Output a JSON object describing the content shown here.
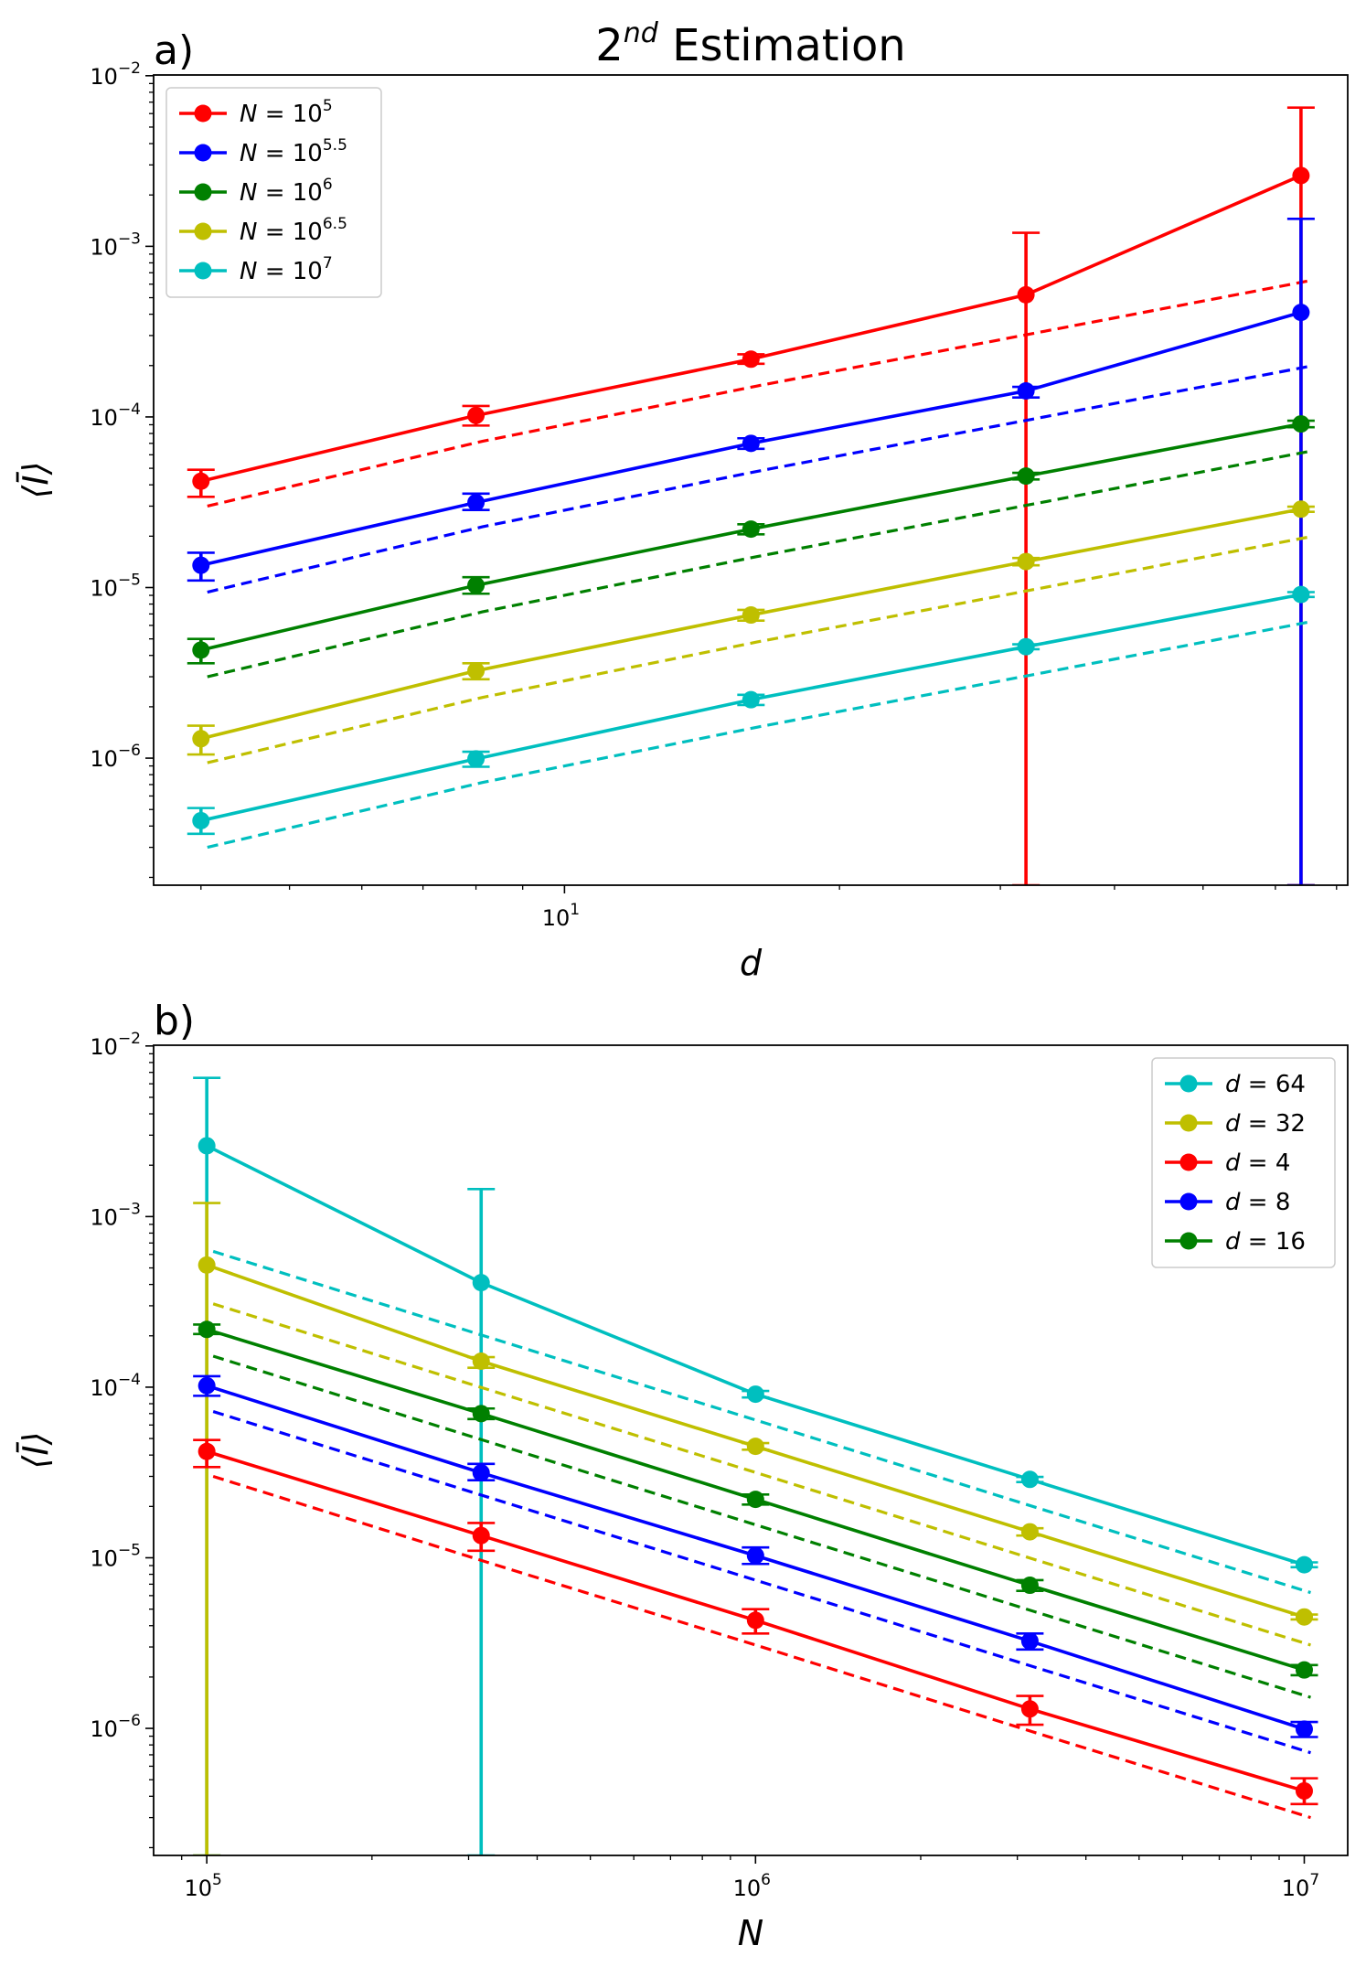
{
  "chart_data": [
    {
      "type": "line",
      "panel": "a)",
      "title": "2",
      "title_sup": "nd",
      "title_rest": " Estimation",
      "xlabel": "d",
      "ylabel": "⟨Ī⟩",
      "xscale": "log",
      "yscale": "log",
      "xlim": [
        3.55,
        72
      ],
      "ylim": [
        1.8e-07,
        0.0101
      ],
      "x_ticks": [
        {
          "value": 10,
          "base": "10",
          "exp": "1"
        }
      ],
      "y_ticks": [
        {
          "value": 1e-06,
          "base": "10",
          "exp": "−6"
        },
        {
          "value": 1e-05,
          "base": "10",
          "exp": "−5"
        },
        {
          "value": 0.0001,
          "base": "10",
          "exp": "−4"
        },
        {
          "value": 0.001,
          "base": "10",
          "exp": "−3"
        },
        {
          "value": 0.01,
          "base": "10",
          "exp": "−2"
        }
      ],
      "legend_position": "upper-left",
      "x": [
        4,
        8,
        16,
        32,
        64
      ],
      "series": [
        {
          "name": "N = 10",
          "name_sup": "5",
          "color": "#ff0000",
          "values": [
            4.2e-05,
            0.000102,
            0.000218,
            0.00052,
            0.0026
          ],
          "err_low": [
            3.4e-05,
            8.9e-05,
            0.000205,
            1.8e-07,
            1.8e-07
          ],
          "err_high": [
            4.9e-05,
            0.000116,
            0.000233,
            0.0012,
            0.0065
          ],
          "dashed": [
            3e-05,
            7.2e-05,
            0.000152,
            0.000308,
            0.000625
          ]
        },
        {
          "name": "N = 10",
          "name_sup": "5.5",
          "color": "#0000ff",
          "values": [
            1.35e-05,
            3.15e-05,
            7e-05,
            0.000142,
            0.00041
          ],
          "err_low": [
            1.1e-05,
            2.85e-05,
            6.5e-05,
            0.00013,
            1.8e-07
          ],
          "err_high": [
            1.6e-05,
            3.55e-05,
            7.5e-05,
            0.00015,
            0.00145
          ],
          "dashed": [
            9.4e-06,
            2.27e-05,
            4.8e-05,
            9.7e-05,
            0.000197
          ]
        },
        {
          "name": "N = 10",
          "name_sup": "6",
          "color": "#008000",
          "values": [
            4.3e-06,
            1.03e-05,
            2.2e-05,
            4.5e-05,
            9.1e-05
          ],
          "err_low": [
            3.6e-06,
            9.2e-06,
            2.05e-05,
            4.3e-05,
            8.7e-05
          ],
          "err_high": [
            5e-06,
            1.15e-05,
            2.35e-05,
            4.7e-05,
            9.5e-05
          ],
          "dashed": [
            3e-06,
            7.2e-06,
            1.52e-05,
            3.08e-05,
            6.25e-05
          ]
        },
        {
          "name": "N = 10",
          "name_sup": "6.5",
          "color": "#bfbf00",
          "values": [
            1.3e-06,
            3.25e-06,
            6.9e-06,
            1.42e-05,
            2.88e-05
          ],
          "err_low": [
            1.05e-06,
            2.9e-06,
            6.4e-06,
            1.35e-05,
            2.78e-05
          ],
          "err_high": [
            1.55e-06,
            3.6e-06,
            7.4e-06,
            1.49e-05,
            2.98e-05
          ],
          "dashed": [
            9.4e-07,
            2.27e-06,
            4.8e-06,
            9.7e-06,
            1.97e-05
          ]
        },
        {
          "name": "N = 10",
          "name_sup": "7",
          "color": "#00bfbf",
          "values": [
            4.3e-07,
            9.9e-07,
            2.2e-06,
            4.5e-06,
            9.1e-06
          ],
          "err_low": [
            3.6e-07,
            8.9e-07,
            2.05e-06,
            4.35e-06,
            8.8e-06
          ],
          "err_high": [
            5.1e-07,
            1.09e-06,
            2.35e-06,
            4.65e-06,
            9.4e-06
          ],
          "dashed": [
            3e-07,
            7.2e-07,
            1.52e-06,
            3.08e-06,
            6.25e-06
          ]
        }
      ]
    },
    {
      "type": "line",
      "panel": "b)",
      "xlabel": "N",
      "ylabel": "⟨Ī⟩",
      "xscale": "log",
      "yscale": "log",
      "xlim": [
        80000,
        12000000
      ],
      "ylim": [
        1.8e-07,
        0.0101
      ],
      "x_ticks": [
        {
          "value": 100000,
          "base": "10",
          "exp": "5"
        },
        {
          "value": 1000000,
          "base": "10",
          "exp": "6"
        },
        {
          "value": 10000000,
          "base": "10",
          "exp": "7"
        }
      ],
      "y_ticks": [
        {
          "value": 1e-06,
          "base": "10",
          "exp": "−6"
        },
        {
          "value": 1e-05,
          "base": "10",
          "exp": "−5"
        },
        {
          "value": 0.0001,
          "base": "10",
          "exp": "−4"
        },
        {
          "value": 0.001,
          "base": "10",
          "exp": "−3"
        },
        {
          "value": 0.01,
          "base": "10",
          "exp": "−2"
        }
      ],
      "legend_position": "upper-right",
      "x": [
        100000,
        316228,
        1000000,
        3162278,
        10000000
      ],
      "series": [
        {
          "name": "d = 64",
          "color": "#00bfbf",
          "values": [
            0.0026,
            0.00041,
            9.1e-05,
            2.88e-05,
            9.1e-06
          ],
          "err_low": [
            1.8e-07,
            1.8e-07,
            8.7e-05,
            2.78e-05,
            8.8e-06
          ],
          "err_high": [
            0.0065,
            0.00145,
            9.5e-05,
            2.98e-05,
            9.4e-06
          ],
          "dashed": [
            0.000625,
            0.000197,
            6.25e-05,
            1.97e-05,
            6.25e-06
          ]
        },
        {
          "name": "d = 32",
          "color": "#bfbf00",
          "values": [
            0.00052,
            0.000142,
            4.5e-05,
            1.42e-05,
            4.5e-06
          ],
          "err_low": [
            1.8e-07,
            0.00013,
            4.3e-05,
            1.35e-05,
            4.35e-06
          ],
          "err_high": [
            0.0012,
            0.00015,
            4.7e-05,
            1.49e-05,
            4.65e-06
          ],
          "dashed": [
            0.000308,
            9.7e-05,
            3.08e-05,
            9.7e-06,
            3.08e-06
          ]
        },
        {
          "name": "d = 4",
          "color": "#ff0000",
          "values": [
            4.2e-05,
            1.35e-05,
            4.3e-06,
            1.3e-06,
            4.3e-07
          ],
          "err_low": [
            3.4e-05,
            1.1e-05,
            3.6e-06,
            1.05e-06,
            3.6e-07
          ],
          "err_high": [
            4.9e-05,
            1.6e-05,
            5e-06,
            1.55e-06,
            5.1e-07
          ],
          "dashed": [
            3e-05,
            9.4e-06,
            3e-06,
            9.4e-07,
            3e-07
          ]
        },
        {
          "name": "d = 8",
          "color": "#0000ff",
          "values": [
            0.000102,
            3.15e-05,
            1.03e-05,
            3.25e-06,
            9.9e-07
          ],
          "err_low": [
            8.9e-05,
            2.85e-05,
            9.2e-06,
            2.9e-06,
            8.9e-07
          ],
          "err_high": [
            0.000116,
            3.55e-05,
            1.15e-05,
            3.6e-06,
            1.09e-06
          ],
          "dashed": [
            7.2e-05,
            2.27e-05,
            7.2e-06,
            2.27e-06,
            7.2e-07
          ]
        },
        {
          "name": "d = 16",
          "color": "#008000",
          "values": [
            0.000218,
            7e-05,
            2.2e-05,
            6.9e-06,
            2.2e-06
          ],
          "err_low": [
            0.000205,
            6.5e-05,
            2.05e-05,
            6.4e-06,
            2.05e-06
          ],
          "err_high": [
            0.000233,
            7.5e-05,
            2.35e-05,
            7.4e-06,
            2.35e-06
          ],
          "dashed": [
            0.000152,
            4.8e-05,
            1.52e-05,
            4.8e-06,
            1.52e-06
          ]
        }
      ]
    }
  ]
}
